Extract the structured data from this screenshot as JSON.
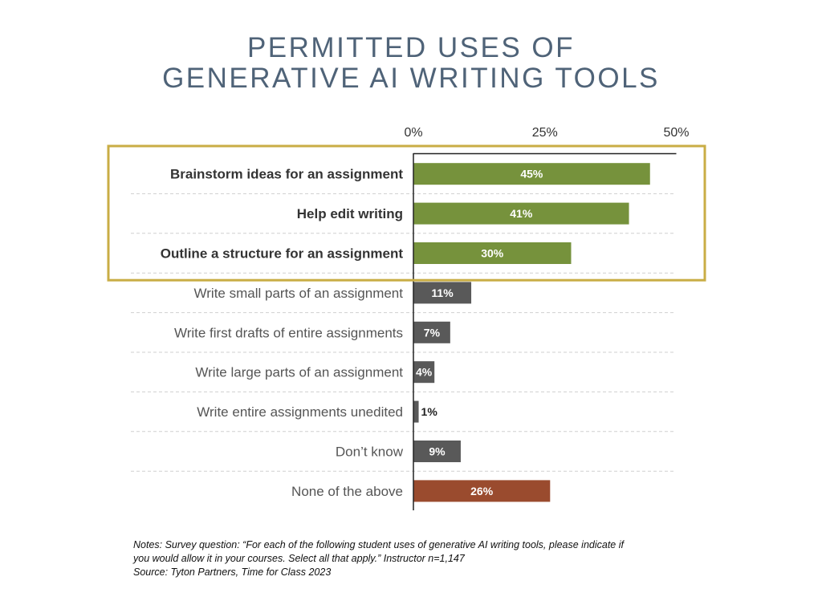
{
  "title": {
    "line1": "PERMITTED USES OF",
    "line2": "GENERATIVE AI WRITING TOOLS"
  },
  "notes": {
    "line1": "Notes: Survey question: “For each of the following student uses of generative AI writing tools, please indicate if",
    "line2": "you would allow it in your courses. Select all that apply.” Instructor n=1,147",
    "line3": "Source: Tyton Partners, Time for Class 2023"
  },
  "chart_data": {
    "type": "bar",
    "orientation": "horizontal",
    "x_ticks": [
      "0%",
      "25%",
      "50%"
    ],
    "x_tick_values": [
      0,
      25,
      50
    ],
    "xlim": [
      0,
      50
    ],
    "tick_position": "top",
    "grid": "horizontal dashed separators",
    "categories": [
      "Brainstorm ideas for an assignment",
      "Help edit writing",
      "Outline a structure for an assignment",
      "Write small parts of an assignment",
      "Write first drafts of entire assignments",
      "Write large parts of an assignment",
      "Write entire assignments unedited",
      "Don’t know",
      "None of the above"
    ],
    "values": [
      45,
      41,
      30,
      11,
      7,
      4,
      1,
      9,
      26
    ],
    "value_labels": [
      "45%",
      "41%",
      "30%",
      "11%",
      "7%",
      "4%",
      "1%",
      "9%",
      "26%"
    ],
    "highlighted": [
      true,
      true,
      true,
      false,
      false,
      false,
      false,
      false,
      false
    ],
    "bar_colors": [
      "#76923c",
      "#76923c",
      "#76923c",
      "#595959",
      "#595959",
      "#595959",
      "#595959",
      "#595959",
      "#9a4b2e"
    ],
    "highlight_box_color": "#c9ad45"
  }
}
